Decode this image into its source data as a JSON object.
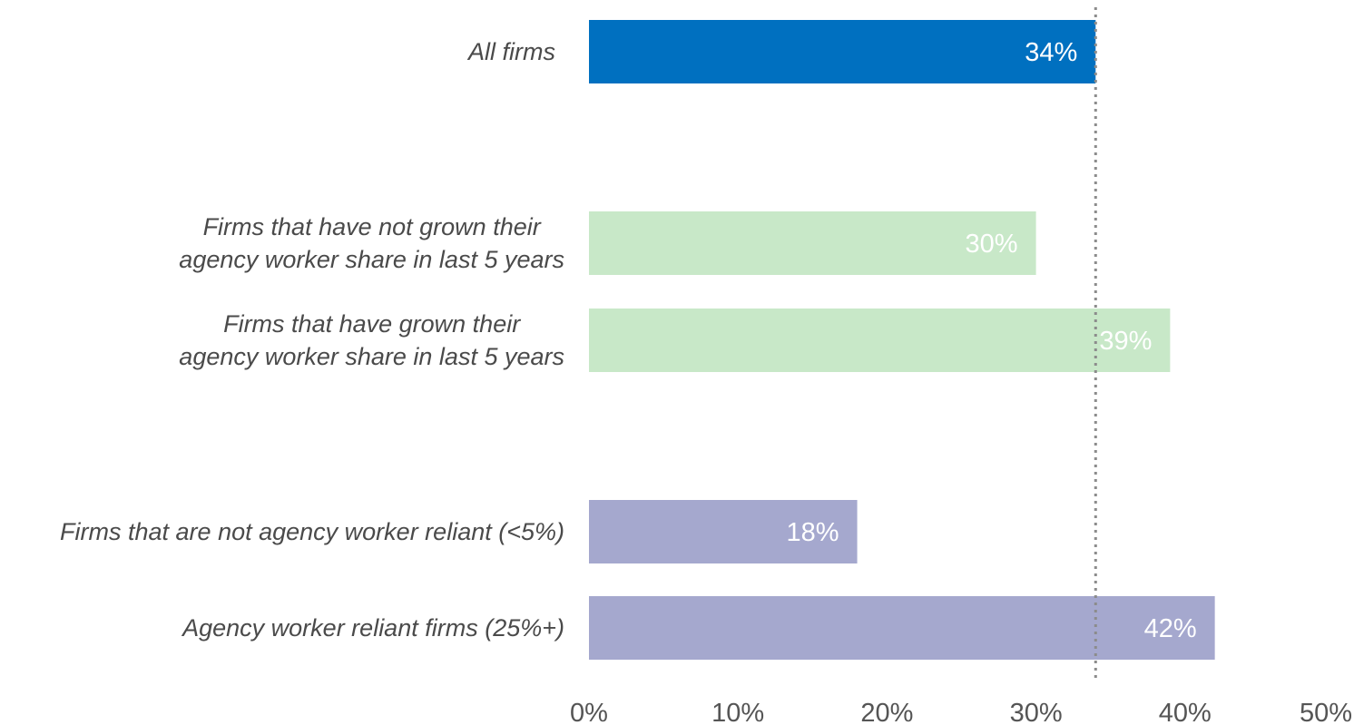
{
  "chart_data": {
    "type": "bar",
    "orientation": "horizontal",
    "categories": [
      [
        "All firms"
      ],
      [
        "Firms that have not grown their",
        "agency worker share in last 5 years"
      ],
      [
        "Firms that have grown their",
        "agency worker share in last 5 years"
      ],
      [
        "Firms that are not agency worker reliant (<5%)"
      ],
      [
        "Agency worker reliant firms (25%+)"
      ]
    ],
    "values": [
      34,
      30,
      39,
      18,
      42
    ],
    "value_labels": [
      "34%",
      "30%",
      "39%",
      "18%",
      "42%"
    ],
    "bar_colors": [
      "#0070c0",
      "#c8e8c8",
      "#c8e8c8",
      "#a5a8ce",
      "#a5a8ce"
    ],
    "reference_line": {
      "value": 34,
      "style": "dotted",
      "color": "#999999"
    },
    "xlim": [
      0,
      50
    ],
    "xticks": [
      0,
      10,
      20,
      30,
      40,
      50
    ],
    "xtick_labels": [
      "0%",
      "10%",
      "20%",
      "30%",
      "40%",
      "50%"
    ],
    "grid": false,
    "legend": "none"
  }
}
